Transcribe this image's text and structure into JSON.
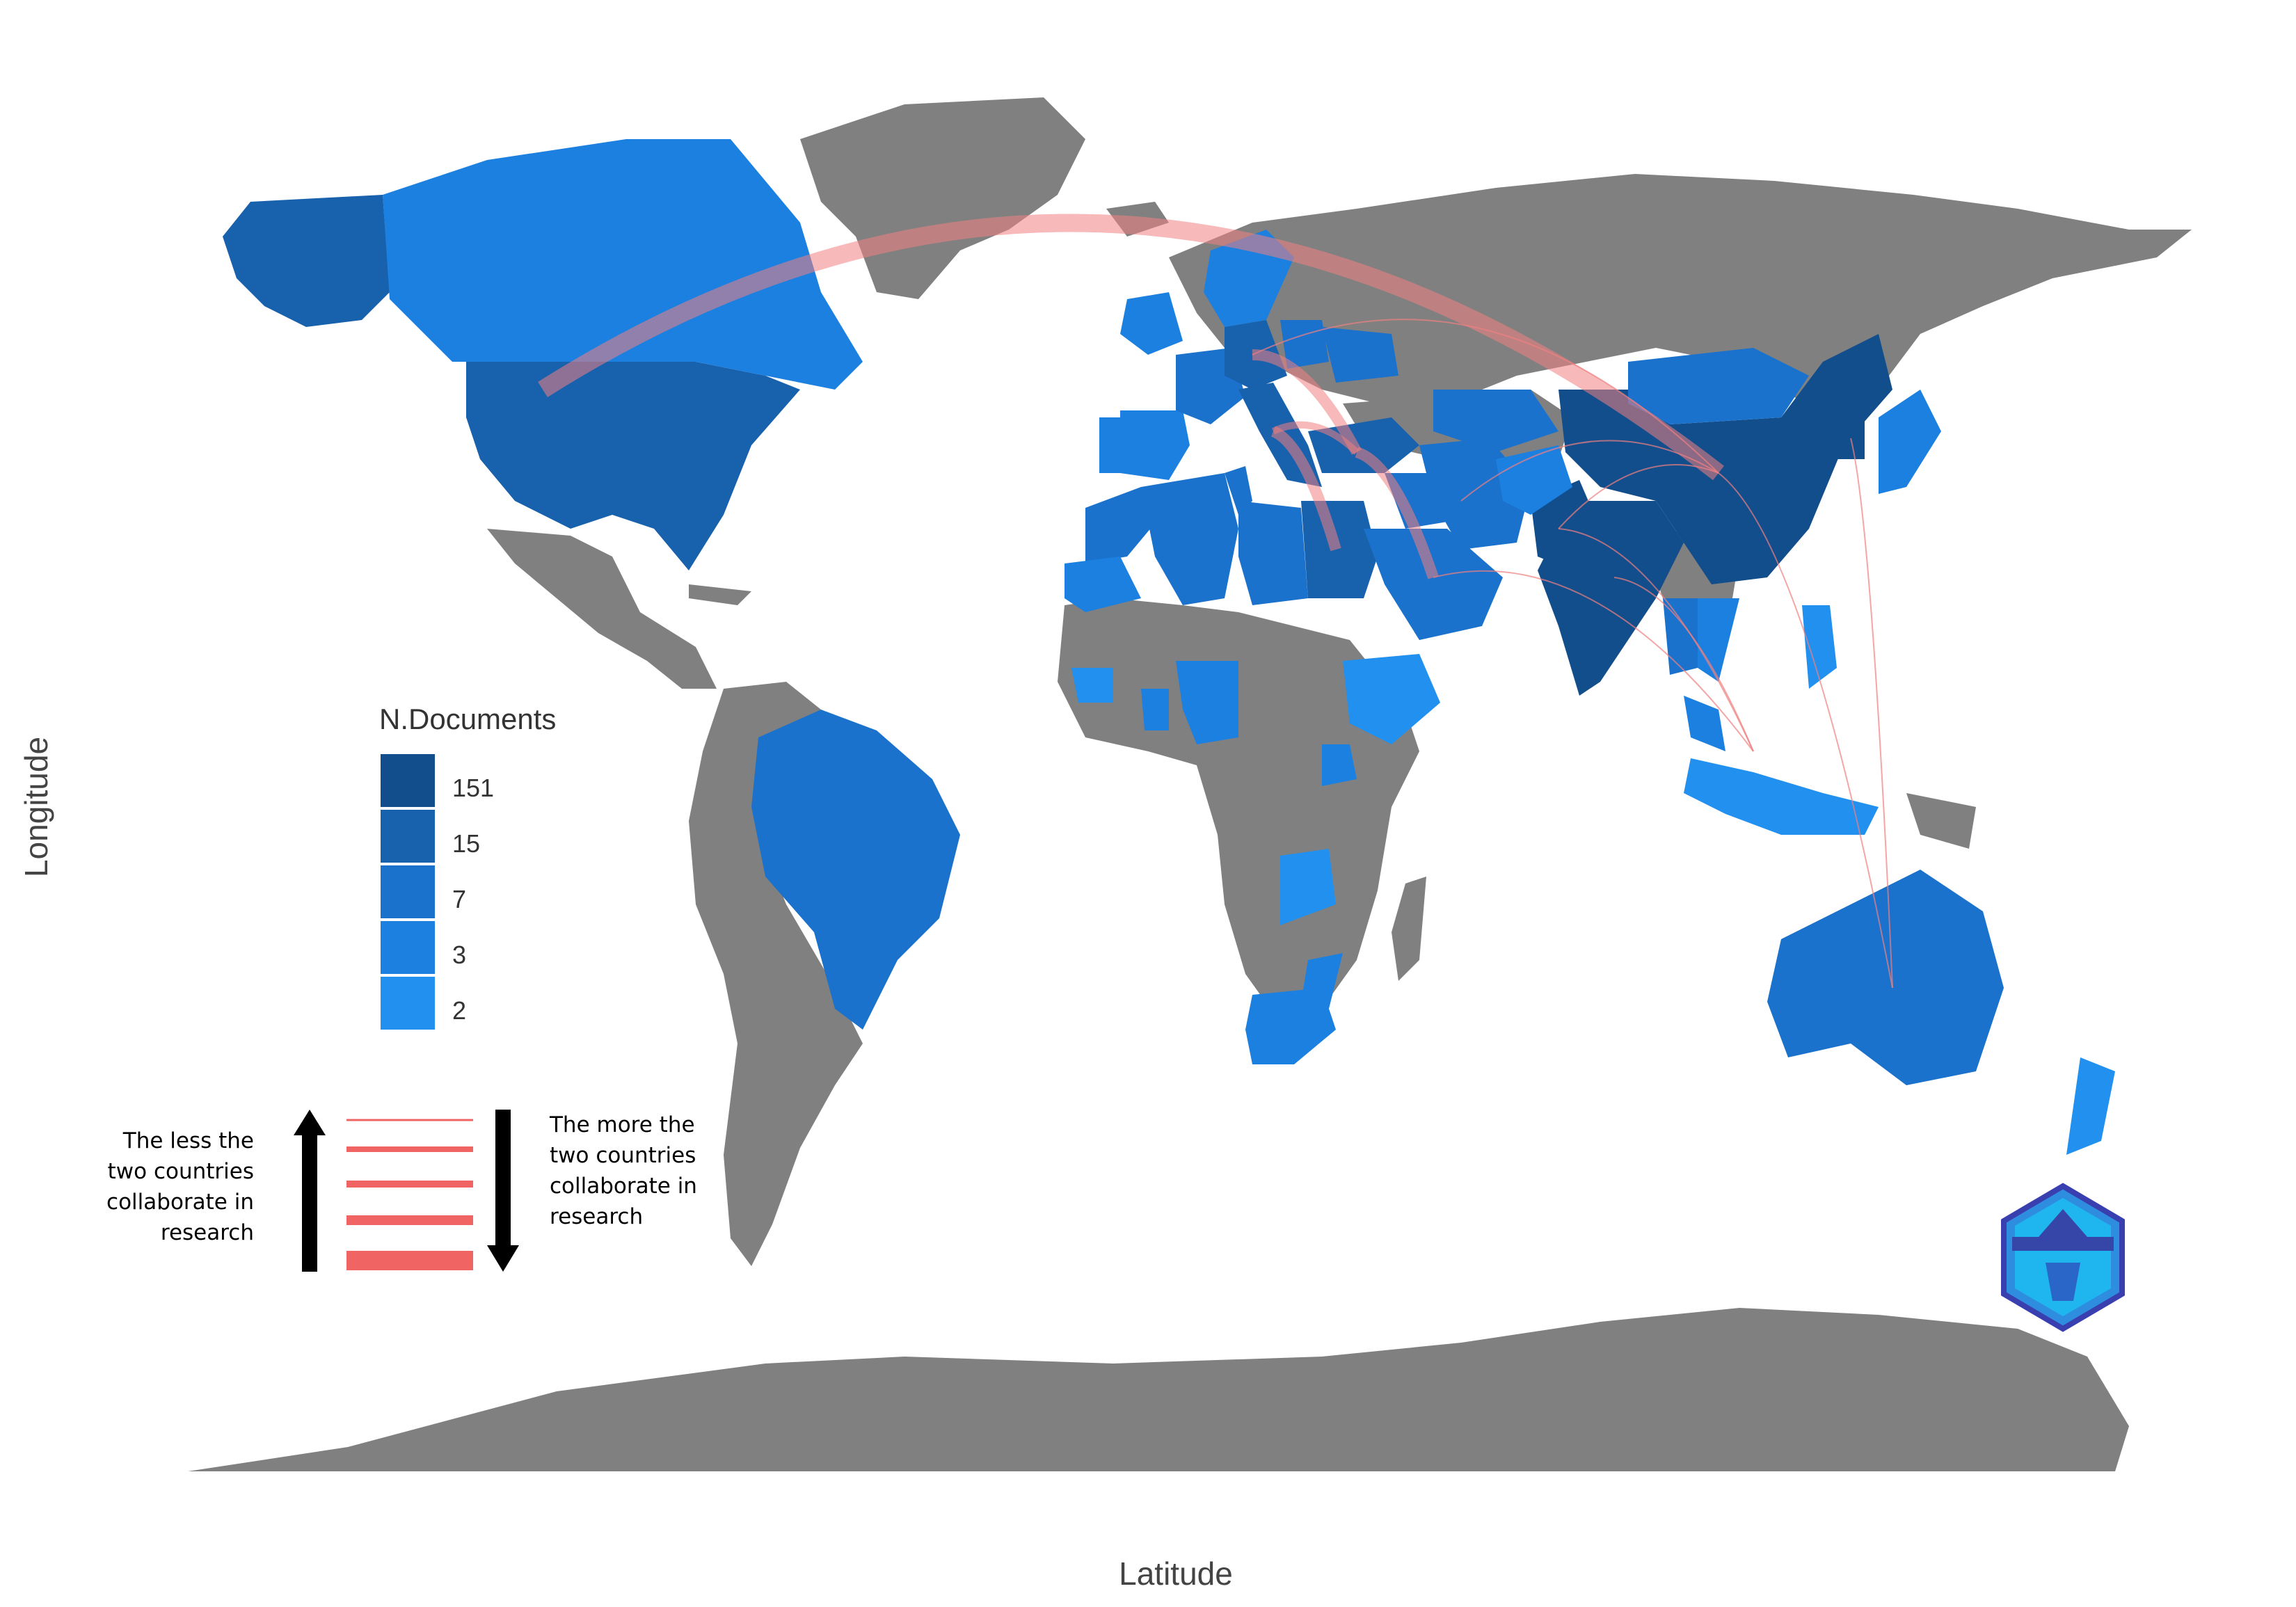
{
  "axes": {
    "xlabel": "Latitude",
    "ylabel": "Longitude"
  },
  "legend": {
    "title": "N.Documents",
    "items": [
      {
        "label": "151",
        "color": "#134e8c"
      },
      {
        "label": "15",
        "color": "#1761ad"
      },
      {
        "label": "7",
        "color": "#1a72cc"
      },
      {
        "label": "3",
        "color": "#1c80e0"
      },
      {
        "label": "2",
        "color": "#2190ee"
      }
    ]
  },
  "collaboration_key": {
    "less_text": "The less the\ntwo countries\ncollaborate in\nresearch",
    "more_text": "The more the\ntwo countries\ncollaborate in\nresearch",
    "line_color": "#f06464",
    "strength_levels": [
      1,
      2,
      3,
      4,
      5
    ]
  },
  "map_colors": {
    "no_data": "#808080",
    "ocean": "#ffffff",
    "link": "#f08080"
  },
  "countries": [
    {
      "name": "USA",
      "bin": "15"
    },
    {
      "name": "Alaska (USA)",
      "bin": "15"
    },
    {
      "name": "Canada",
      "bin": "3"
    },
    {
      "name": "China",
      "bin": "151"
    },
    {
      "name": "India",
      "bin": "151"
    },
    {
      "name": "Pakistan",
      "bin": "151"
    },
    {
      "name": "Australia",
      "bin": "7"
    },
    {
      "name": "Brazil",
      "bin": "7"
    },
    {
      "name": "Mongolia",
      "bin": "7"
    },
    {
      "name": "Korea",
      "bin": "151"
    },
    {
      "name": "Japan",
      "bin": "3"
    },
    {
      "name": "Malaysia",
      "bin": "3"
    },
    {
      "name": "Indonesia",
      "bin": "2"
    },
    {
      "name": "Thailand",
      "bin": "7"
    },
    {
      "name": "Vietnam",
      "bin": "3"
    },
    {
      "name": "Philippines",
      "bin": "2"
    },
    {
      "name": "New Zealand",
      "bin": "2"
    },
    {
      "name": "Algeria",
      "bin": "7"
    },
    {
      "name": "Morocco",
      "bin": "7"
    },
    {
      "name": "Tunisia",
      "bin": "7"
    },
    {
      "name": "Libya",
      "bin": "7"
    },
    {
      "name": "Egypt",
      "bin": "15"
    },
    {
      "name": "Saudi Arabia",
      "bin": "7"
    },
    {
      "name": "Iran",
      "bin": "7"
    },
    {
      "name": "Iraq",
      "bin": "7"
    },
    {
      "name": "Turkey",
      "bin": "15"
    },
    {
      "name": "Afghanistan",
      "bin": "3"
    },
    {
      "name": "Kazakhstan (south)",
      "bin": "7"
    },
    {
      "name": "Mauritania",
      "bin": "3"
    },
    {
      "name": "Nigeria",
      "bin": "3"
    },
    {
      "name": "Ghana",
      "bin": "3"
    },
    {
      "name": "Senegal",
      "bin": "2"
    },
    {
      "name": "Ethiopia",
      "bin": "2"
    },
    {
      "name": "Kenya",
      "bin": "3"
    },
    {
      "name": "Zambia",
      "bin": "2"
    },
    {
      "name": "Mozambique",
      "bin": "3"
    },
    {
      "name": "South Africa",
      "bin": "3"
    },
    {
      "name": "Spain",
      "bin": "3"
    },
    {
      "name": "Portugal",
      "bin": "3"
    },
    {
      "name": "France",
      "bin": "7"
    },
    {
      "name": "Germany",
      "bin": "15"
    },
    {
      "name": "Italy",
      "bin": "15"
    },
    {
      "name": "United Kingdom",
      "bin": "3"
    },
    {
      "name": "Scandinavia",
      "bin": "3"
    },
    {
      "name": "Poland",
      "bin": "7"
    },
    {
      "name": "Ukraine",
      "bin": "7"
    }
  ],
  "links": [
    {
      "from": "USA",
      "to": "China",
      "strength": 5
    },
    {
      "from": "Germany",
      "to": "Turkey",
      "strength": 4
    },
    {
      "from": "Italy",
      "to": "Egypt",
      "strength": 4
    },
    {
      "from": "Turkey",
      "to": "Saudi Arabia",
      "strength": 4
    },
    {
      "from": "Italy",
      "to": "Turkey",
      "strength": 3
    },
    {
      "from": "Germany",
      "to": "China",
      "strength": 1
    },
    {
      "from": "Pakistan",
      "to": "China",
      "strength": 1
    },
    {
      "from": "Saudi Arabia",
      "to": "Malaysia",
      "strength": 1
    },
    {
      "from": "Pakistan",
      "to": "Malaysia",
      "strength": 1
    },
    {
      "from": "India",
      "to": "Malaysia",
      "strength": 1
    },
    {
      "from": "China",
      "to": "Australia",
      "strength": 1
    },
    {
      "from": "Korea",
      "to": "Australia",
      "strength": 1
    },
    {
      "from": "Iran",
      "to": "China",
      "strength": 1
    }
  ]
}
